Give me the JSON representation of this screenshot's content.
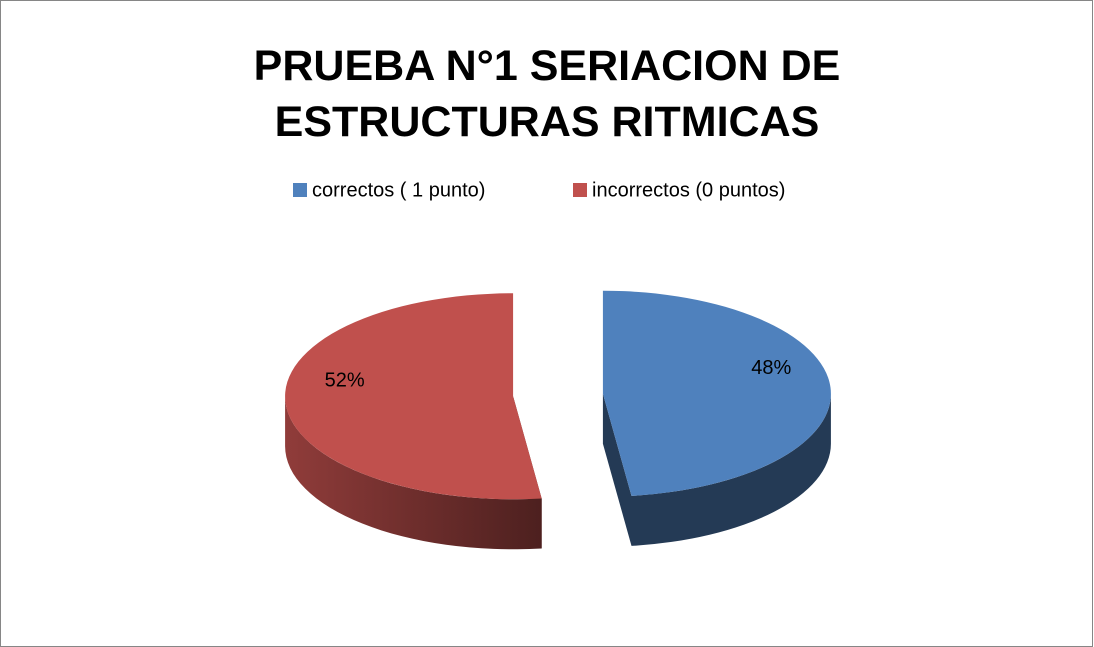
{
  "chart_data": {
    "type": "pie",
    "title": "PRUEBA N°1 SERIACION DE ESTRUCTURAS RITMICAS",
    "categories": [
      "correctos ( 1 punto)",
      "incorrectos (0 puntos)"
    ],
    "values": [
      48,
      52
    ],
    "value_labels": [
      "48%",
      "52%"
    ],
    "colors": [
      "#4f81bd",
      "#c0504d"
    ],
    "legend": "top"
  }
}
